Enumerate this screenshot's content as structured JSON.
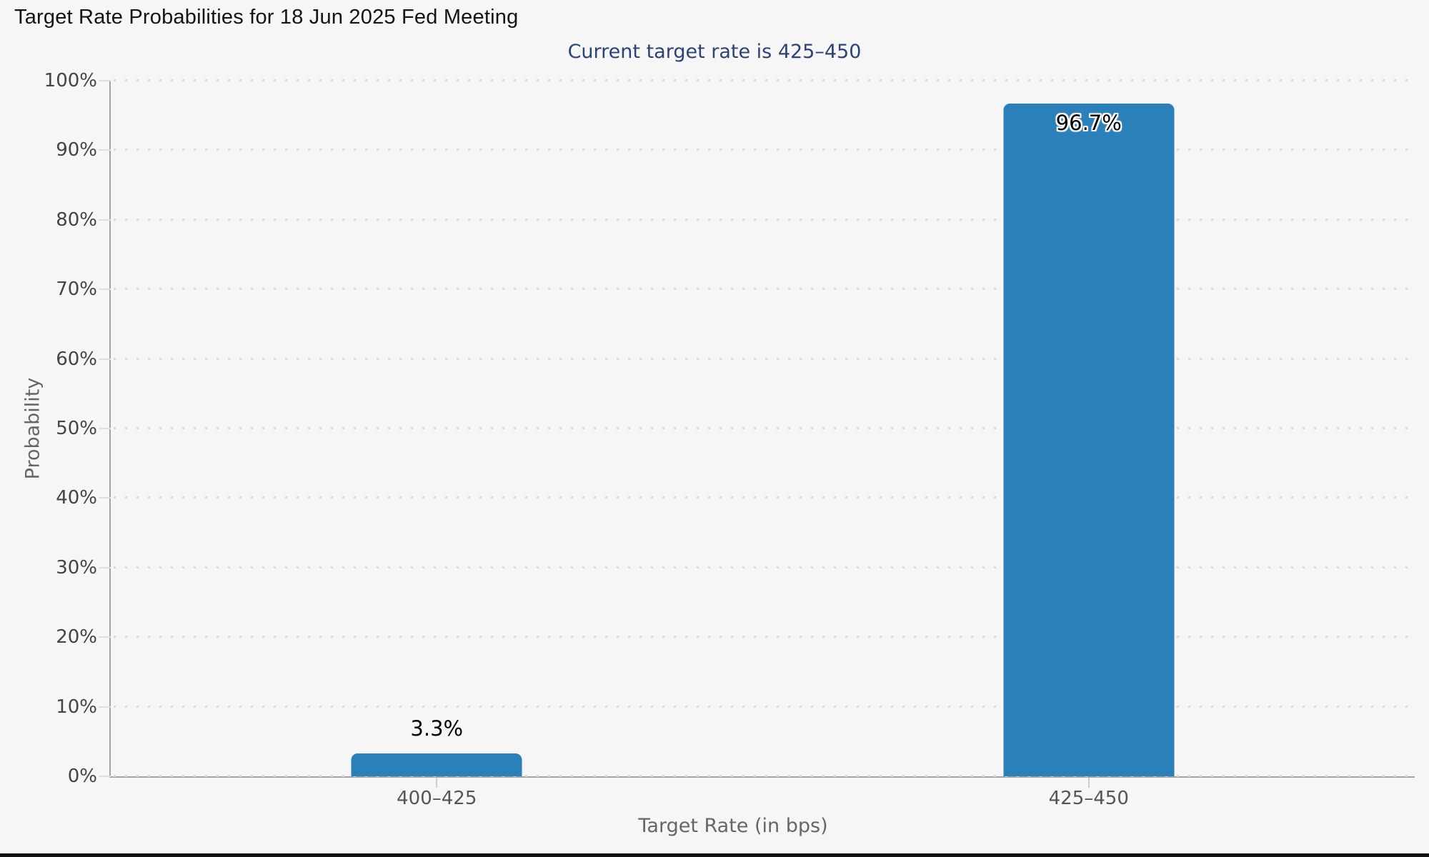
{
  "page": {
    "background_color": "#f6f6f6",
    "bottom_strip_color": "#111111"
  },
  "chart_data": {
    "type": "bar",
    "title": "Target Rate Probabilities for 18 Jun 2025 Fed Meeting",
    "subtitle": "Current target rate is 425–450",
    "current_target_rate": "425–450",
    "xlabel": "Target Rate (in bps)",
    "ylabel": "Probability",
    "categories": [
      "400–425",
      "425–450"
    ],
    "values": [
      3.3,
      96.7
    ],
    "value_labels": [
      "3.3%",
      "96.7%"
    ],
    "ylim": [
      0,
      100
    ],
    "yticks": [
      {
        "value": 0,
        "label": "0%"
      },
      {
        "value": 10,
        "label": "10%"
      },
      {
        "value": 20,
        "label": "20%"
      },
      {
        "value": 30,
        "label": "30%"
      },
      {
        "value": 40,
        "label": "40%"
      },
      {
        "value": 50,
        "label": "50%"
      },
      {
        "value": 60,
        "label": "60%"
      },
      {
        "value": 70,
        "label": "70%"
      },
      {
        "value": 80,
        "label": "80%"
      },
      {
        "value": 90,
        "label": "90%"
      },
      {
        "value": 100,
        "label": "100%"
      }
    ],
    "grid": "horizontal-dotted",
    "legend": "none",
    "bar_color": "#2b80b9",
    "subtitle_color": "#2d4373",
    "axis_color": "#a3a3a3",
    "grid_dot_color": "#d9d9d9",
    "title_color": "#141414",
    "data_label_color": "#000000"
  }
}
